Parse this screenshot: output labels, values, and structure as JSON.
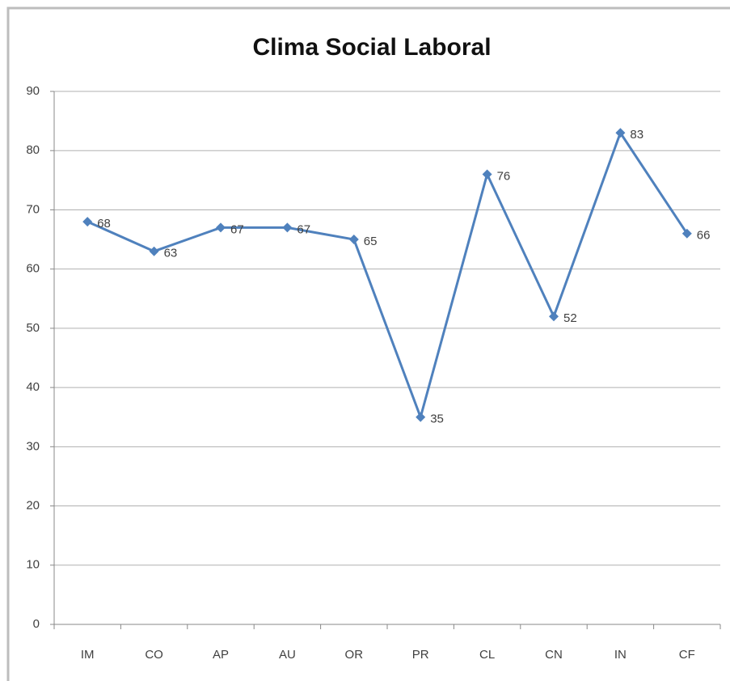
{
  "chart_data": {
    "type": "line",
    "title": "Clima Social Laboral",
    "categories": [
      "IM",
      "CO",
      "AP",
      "AU",
      "OR",
      "PR",
      "CL",
      "CN",
      "IN",
      "CF"
    ],
    "values": [
      68,
      63,
      67,
      67,
      65,
      35,
      76,
      52,
      83,
      66
    ],
    "color": "#4f81bd",
    "ylim": [
      0,
      90
    ],
    "yticks": [
      0,
      10,
      20,
      30,
      40,
      50,
      60,
      70,
      80,
      90
    ],
    "grid": true,
    "data_labels": true
  }
}
